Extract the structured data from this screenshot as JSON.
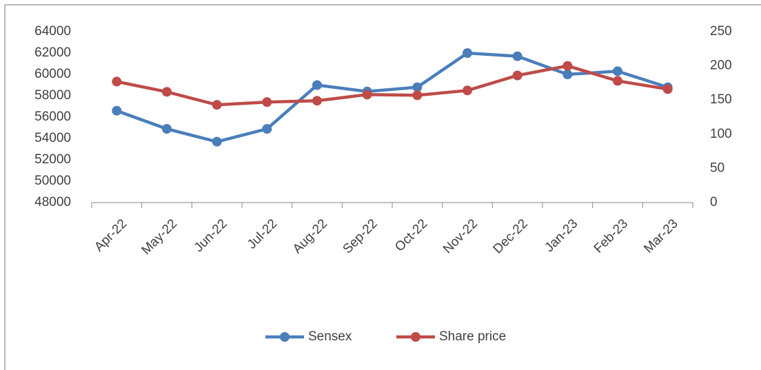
{
  "chart_data": {
    "type": "line",
    "categories": [
      "Apr-22",
      "May-22",
      "Jun-22",
      "Jul-22",
      "Aug-22",
      "Sep-22",
      "Oct-22",
      "Nov-22",
      "Dec-22",
      "Jan-23",
      "Feb-23",
      "Mar-23"
    ],
    "series": [
      {
        "name": "Sensex",
        "color": "#4a7ebb",
        "values": [
          56600,
          54900,
          53700,
          54900,
          59000,
          58400,
          58800,
          62000,
          61700,
          60000,
          60300,
          58800
        ]
      },
      {
        "name": "Share price",
        "color": "#be4b48",
        "axis": "y2",
        "values": [
          177,
          162,
          143,
          147,
          149,
          158,
          157,
          164,
          186,
          200,
          178,
          166
        ]
      }
    ],
    "ylim": [
      48000,
      64000
    ],
    "yticks": [
      48000,
      50000,
      52000,
      54000,
      56000,
      58000,
      60000,
      62000,
      64000
    ],
    "y2lim": [
      0,
      250
    ],
    "y2ticks": [
      0,
      50,
      100,
      150,
      200,
      250
    ],
    "legend": "bottom"
  }
}
